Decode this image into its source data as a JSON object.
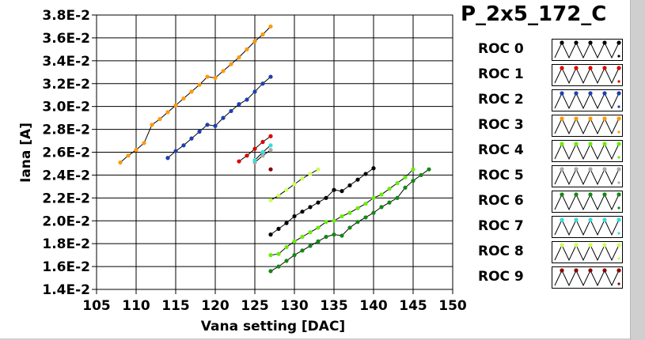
{
  "chart_data": {
    "type": "line",
    "title": "P_2x5_172_C",
    "xlabel": "Vana setting [DAC]",
    "ylabel": "Iana [A]",
    "xlim": [
      105,
      150
    ],
    "ylim": [
      0.014,
      0.038
    ],
    "xticks": [
      105,
      110,
      115,
      120,
      125,
      130,
      135,
      140,
      145,
      150
    ],
    "xtick_labels": [
      "105",
      "110",
      "115",
      "120",
      "125",
      "130",
      "135",
      "140",
      "145",
      "150"
    ],
    "yticks": [
      0.014,
      0.016,
      0.018,
      0.02,
      0.022,
      0.024,
      0.026,
      0.028,
      0.03,
      0.032,
      0.034,
      0.036,
      0.038
    ],
    "ytick_labels": [
      "1.4E-2",
      "1.6E-2",
      "1.8E-2",
      "2.0E-2",
      "2.2E-2",
      "2.4E-2",
      "2.6E-2",
      "2.8E-2",
      "3.0E-2",
      "3.2E-2",
      "3.4E-2",
      "3.6E-2",
      "3.8E-2"
    ],
    "grid": true,
    "legend_position": "right",
    "series": [
      {
        "name": "ROC 0",
        "color": "#000000",
        "x": [
          127,
          128,
          129,
          130,
          131,
          132,
          133,
          134,
          135,
          136,
          137,
          138,
          139,
          140
        ],
        "y": [
          0.0188,
          0.0193,
          0.0198,
          0.0204,
          0.0208,
          0.0212,
          0.0216,
          0.022,
          0.0227,
          0.0226,
          0.0231,
          0.0236,
          0.0241,
          0.0246
        ]
      },
      {
        "name": "ROC 1",
        "color": "#dd0000",
        "x": [
          123,
          124,
          125,
          126,
          127
        ],
        "y": [
          0.0252,
          0.0257,
          0.0263,
          0.0269,
          0.0274
        ]
      },
      {
        "name": "ROC 2",
        "color": "#1a3fb3",
        "x": [
          114,
          115,
          116,
          117,
          118,
          119,
          120,
          121,
          122,
          123,
          124,
          125,
          126,
          127
        ],
        "y": [
          0.0255,
          0.0261,
          0.0266,
          0.0272,
          0.0278,
          0.0284,
          0.0283,
          0.029,
          0.0296,
          0.0302,
          0.0306,
          0.0313,
          0.032,
          0.0326
        ]
      },
      {
        "name": "ROC 3",
        "color": "#ff9900",
        "x": [
          108,
          109,
          110,
          111,
          112,
          113,
          114,
          115,
          116,
          117,
          118,
          119,
          120,
          121,
          122,
          123,
          124,
          125,
          126,
          127
        ],
        "y": [
          0.0251,
          0.0257,
          0.0262,
          0.0268,
          0.0284,
          0.0289,
          0.0295,
          0.0301,
          0.0307,
          0.0313,
          0.0319,
          0.0326,
          0.0325,
          0.0331,
          0.0337,
          0.0343,
          0.035,
          0.0357,
          0.0363,
          0.037
        ]
      },
      {
        "name": "ROC 4",
        "color": "#66ee00",
        "x": [
          127,
          128,
          129,
          130,
          131,
          132,
          133,
          134,
          135,
          136,
          137,
          138,
          139,
          140,
          141,
          142,
          143,
          144,
          145
        ],
        "y": [
          0.017,
          0.0171,
          0.0177,
          0.0182,
          0.0186,
          0.019,
          0.0194,
          0.0199,
          0.02,
          0.0204,
          0.0207,
          0.0211,
          0.0215,
          0.022,
          0.0223,
          0.0228,
          0.0233,
          0.0238,
          0.0245
        ]
      },
      {
        "name": "ROC 5",
        "color": "#aaaaaa",
        "x": [
          125,
          126,
          127
        ],
        "y": [
          0.0251,
          0.0257,
          0.0262
        ]
      },
      {
        "name": "ROC 6",
        "color": "#118811",
        "x": [
          127,
          128,
          129,
          130,
          131,
          132,
          133,
          134,
          135,
          136,
          137,
          138,
          139,
          140,
          141,
          142,
          143,
          144,
          145,
          146,
          147
        ],
        "y": [
          0.0156,
          0.016,
          0.0165,
          0.017,
          0.0174,
          0.0178,
          0.0182,
          0.0186,
          0.0188,
          0.0187,
          0.0194,
          0.0199,
          0.0203,
          0.0207,
          0.0212,
          0.0216,
          0.022,
          0.0229,
          0.0235,
          0.024,
          0.0245
        ]
      },
      {
        "name": "ROC 7",
        "color": "#33dddd",
        "x": [
          125,
          126,
          127
        ],
        "y": [
          0.0253,
          0.026,
          0.0266
        ]
      },
      {
        "name": "ROC 8",
        "color": "#ccff55",
        "x": [
          127,
          128,
          129,
          130,
          131,
          132,
          133
        ],
        "y": [
          0.0218,
          0.0222,
          0.0227,
          0.0232,
          0.0237,
          0.0241,
          0.0245
        ]
      },
      {
        "name": "ROC 9",
        "color": "#880000",
        "x": [
          127
        ],
        "y": [
          0.0245
        ]
      }
    ]
  }
}
